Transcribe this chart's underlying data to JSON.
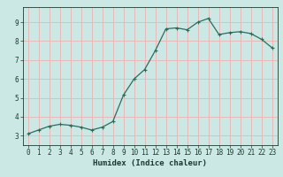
{
  "x": [
    0,
    1,
    2,
    3,
    4,
    5,
    6,
    7,
    8,
    9,
    10,
    11,
    12,
    13,
    14,
    15,
    16,
    17,
    18,
    19,
    20,
    21,
    22,
    23
  ],
  "y": [
    3.1,
    3.3,
    3.5,
    3.6,
    3.55,
    3.45,
    3.3,
    3.45,
    3.75,
    5.15,
    6.0,
    6.5,
    7.5,
    8.65,
    8.7,
    8.6,
    9.0,
    9.2,
    8.35,
    8.45,
    8.5,
    8.4,
    8.1,
    7.65
  ],
  "line_color": "#2e6b5e",
  "marker": "+",
  "marker_size": 3,
  "bg_color": "#cce8e4",
  "grid_color": "#e8b8b8",
  "axis_label_color": "#1a3a30",
  "tick_label_color": "#1a3a30",
  "xlabel": "Humidex (Indice chaleur)",
  "xlabel_fontsize": 6.5,
  "ylim": [
    2.5,
    9.8
  ],
  "xlim": [
    -0.5,
    23.5
  ],
  "yticks": [
    3,
    4,
    5,
    6,
    7,
    8,
    9
  ],
  "xticks": [
    0,
    1,
    2,
    3,
    4,
    5,
    6,
    7,
    8,
    9,
    10,
    11,
    12,
    13,
    14,
    15,
    16,
    17,
    18,
    19,
    20,
    21,
    22,
    23
  ],
  "tick_fontsize": 5.5,
  "line_width": 0.9
}
